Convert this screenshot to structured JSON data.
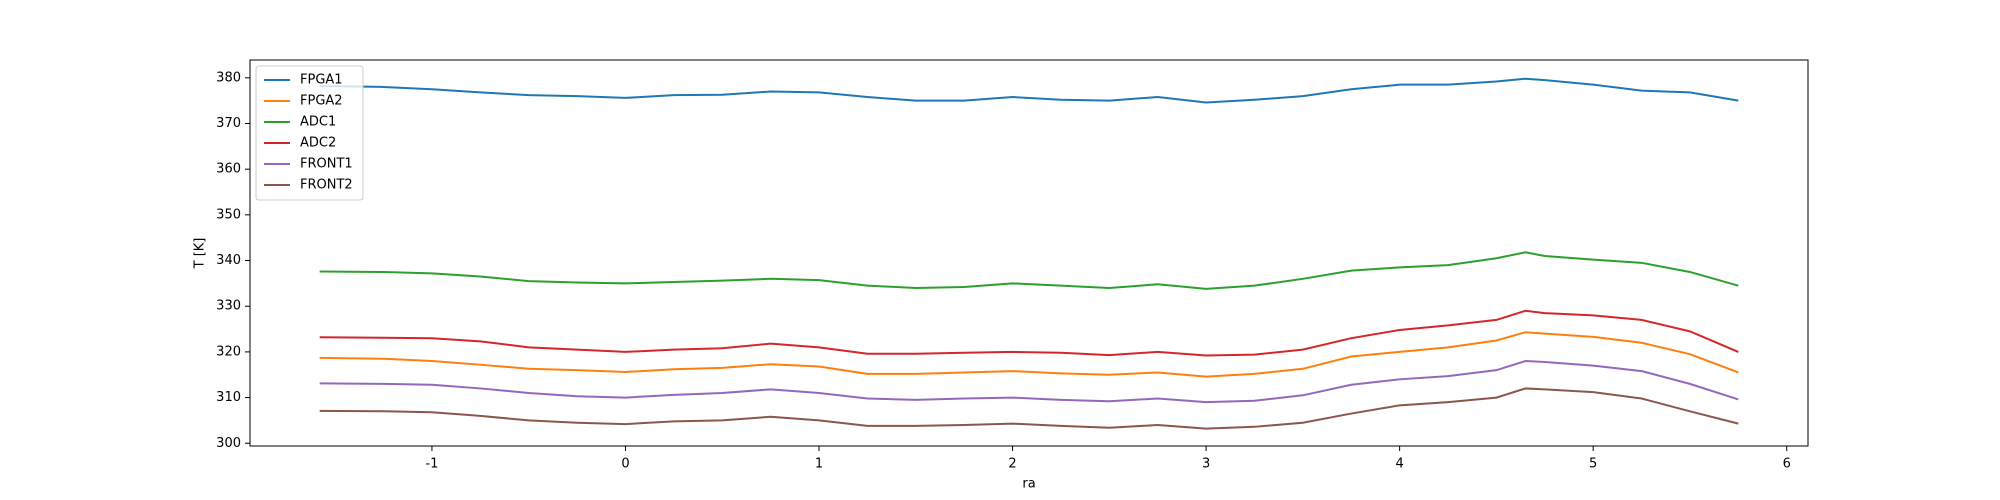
{
  "chart_data": {
    "type": "line",
    "xlabel": "ra",
    "ylabel": "T [K]",
    "x": [
      -1.58,
      -1.25,
      -1.0,
      -0.75,
      -0.5,
      -0.25,
      0,
      0.25,
      0.5,
      0.75,
      1.0,
      1.25,
      1.5,
      1.75,
      2.0,
      2.25,
      2.5,
      2.75,
      3.0,
      3.25,
      3.5,
      3.75,
      4.0,
      4.25,
      4.5,
      4.65,
      4.75,
      5.0,
      5.25,
      5.5,
      5.75
    ],
    "series": [
      {
        "name": "FPGA1",
        "color": "#1f77b4",
        "values": [
          378.2,
          378,
          377.5,
          376.8,
          376.2,
          376,
          375.6,
          376.2,
          376.3,
          377,
          376.8,
          375.8,
          375,
          375,
          375.8,
          375.2,
          375,
          375.8,
          374.6,
          375.2,
          376,
          377.5,
          378.5,
          378.5,
          379.2,
          379.8,
          379.5,
          378.5,
          377.2,
          376.8,
          375
        ]
      },
      {
        "name": "FPGA2",
        "color": "#ff7f0e",
        "values": [
          318.7,
          318.5,
          318,
          317.2,
          316.3,
          316,
          315.6,
          316.2,
          316.5,
          317.3,
          316.8,
          315.2,
          315.2,
          315.5,
          315.8,
          315.3,
          315,
          315.5,
          314.6,
          315.2,
          316.3,
          319,
          320,
          321,
          322.5,
          324.3,
          324,
          323.3,
          322,
          319.5,
          315.5
        ]
      },
      {
        "name": "ADC1",
        "color": "#2ca02c",
        "values": [
          337.6,
          337.5,
          337.2,
          336.5,
          335.5,
          335.2,
          335,
          335.3,
          335.6,
          336,
          335.7,
          334.5,
          334,
          334.2,
          335,
          334.5,
          334,
          334.8,
          333.8,
          334.5,
          336,
          337.8,
          338.5,
          339,
          340.5,
          341.8,
          341,
          340.2,
          339.5,
          337.5,
          334.5
        ]
      },
      {
        "name": "ADC2",
        "color": "#d62728",
        "values": [
          323.2,
          323.1,
          323,
          322.3,
          321,
          320.5,
          320,
          320.5,
          320.8,
          321.8,
          321,
          319.6,
          319.6,
          319.8,
          320,
          319.8,
          319.3,
          320,
          319.2,
          319.4,
          320.5,
          323,
          324.8,
          325.8,
          327,
          329,
          328.5,
          328,
          327,
          324.5,
          320
        ]
      },
      {
        "name": "FRONT1",
        "color": "#9467bd",
        "values": [
          313.1,
          313,
          312.8,
          312,
          311,
          310.3,
          310,
          310.6,
          311,
          311.8,
          311,
          309.8,
          309.5,
          309.8,
          310,
          309.5,
          309.2,
          309.8,
          309,
          309.3,
          310.5,
          312.8,
          314,
          314.7,
          316,
          318,
          317.8,
          317,
          315.8,
          313,
          309.6
        ]
      },
      {
        "name": "FRONT2",
        "color": "#8c564b",
        "values": [
          307.1,
          307,
          306.8,
          306,
          305,
          304.5,
          304.2,
          304.8,
          305,
          305.8,
          305,
          303.8,
          303.8,
          304,
          304.3,
          303.8,
          303.4,
          304,
          303.2,
          303.6,
          304.5,
          306.5,
          308.3,
          309,
          310,
          312,
          311.8,
          311.2,
          309.8,
          307,
          304.3
        ]
      }
    ],
    "xlim": [
      -1.94,
      6.11
    ],
    "xticks": [
      -1,
      0,
      1,
      2,
      3,
      4,
      5,
      6
    ],
    "ylim": [
      299.4,
      383.9
    ],
    "yticks": [
      300,
      310,
      320,
      330,
      340,
      350,
      360,
      370,
      380
    ],
    "legend": "upper left",
    "grid": false
  }
}
